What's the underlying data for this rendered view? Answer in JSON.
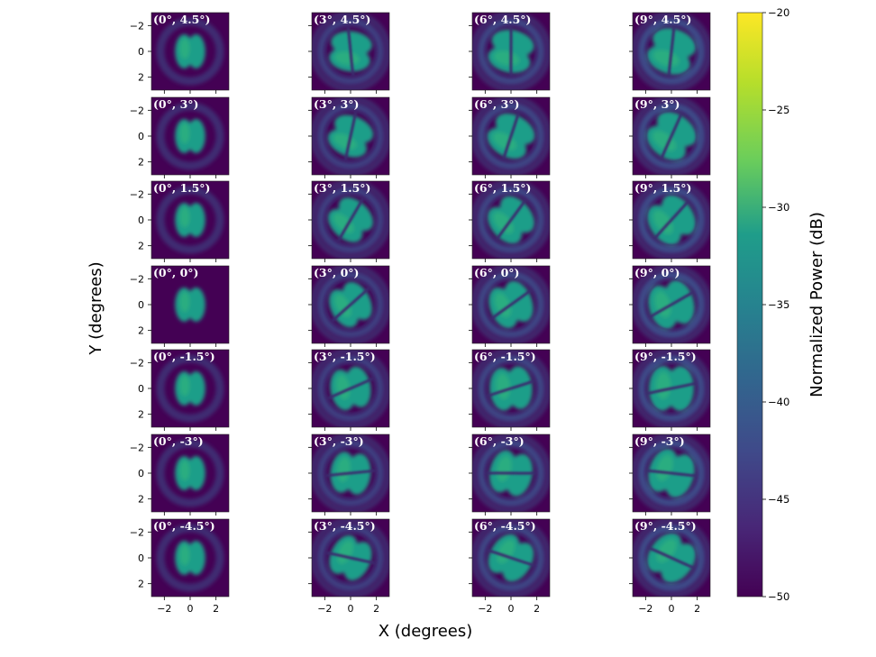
{
  "chart_data": {
    "type": "heatmap",
    "xlabel": "X (degrees)",
    "ylabel": "Y (degrees)",
    "xlim": [
      -3,
      3
    ],
    "ylim": [
      -3,
      3
    ],
    "xticks": [
      "−2",
      "0",
      "2"
    ],
    "yticks": [
      "2",
      "0",
      "−2"
    ],
    "colorbar": {
      "label": "Normalized Power (dB)",
      "range": [
        -50,
        -20
      ],
      "ticks": [
        "−20",
        "−25",
        "−30",
        "−35",
        "−40",
        "−45",
        "−50"
      ],
      "colormap": "viridis"
    },
    "panels": [
      [
        {
          "label": "(0°, 4.5°)"
        },
        {
          "label": "(3°, 4.5°)"
        },
        {
          "label": "(6°, 4.5°)"
        },
        {
          "label": "(9°, 4.5°)"
        }
      ],
      [
        {
          "label": "(0°, 3°)"
        },
        {
          "label": "(3°, 3°)"
        },
        {
          "label": "(6°, 3°)"
        },
        {
          "label": "(9°, 3°)"
        }
      ],
      [
        {
          "label": "(0°, 1.5°)"
        },
        {
          "label": "(3°, 1.5°)"
        },
        {
          "label": "(6°, 1.5°)"
        },
        {
          "label": "(9°, 1.5°)"
        }
      ],
      [
        {
          "label": "(0°, 0°)"
        },
        {
          "label": "(3°, 0°)"
        },
        {
          "label": "(6°, 0°)"
        },
        {
          "label": "(9°, 0°)"
        }
      ],
      [
        {
          "label": "(0°, -1.5°)"
        },
        {
          "label": "(3°, -1.5°)"
        },
        {
          "label": "(6°, -1.5°)"
        },
        {
          "label": "(9°, -1.5°)"
        }
      ],
      [
        {
          "label": "(0°, -3°)"
        },
        {
          "label": "(3°, -3°)"
        },
        {
          "label": "(6°, -3°)"
        },
        {
          "label": "(9°, -3°)"
        }
      ],
      [
        {
          "label": "(0°, -4.5°)"
        },
        {
          "label": "(3°, -4.5°)"
        },
        {
          "label": "(6°, -4.5°)"
        },
        {
          "label": "(9°, -4.5°)"
        }
      ]
    ]
  }
}
